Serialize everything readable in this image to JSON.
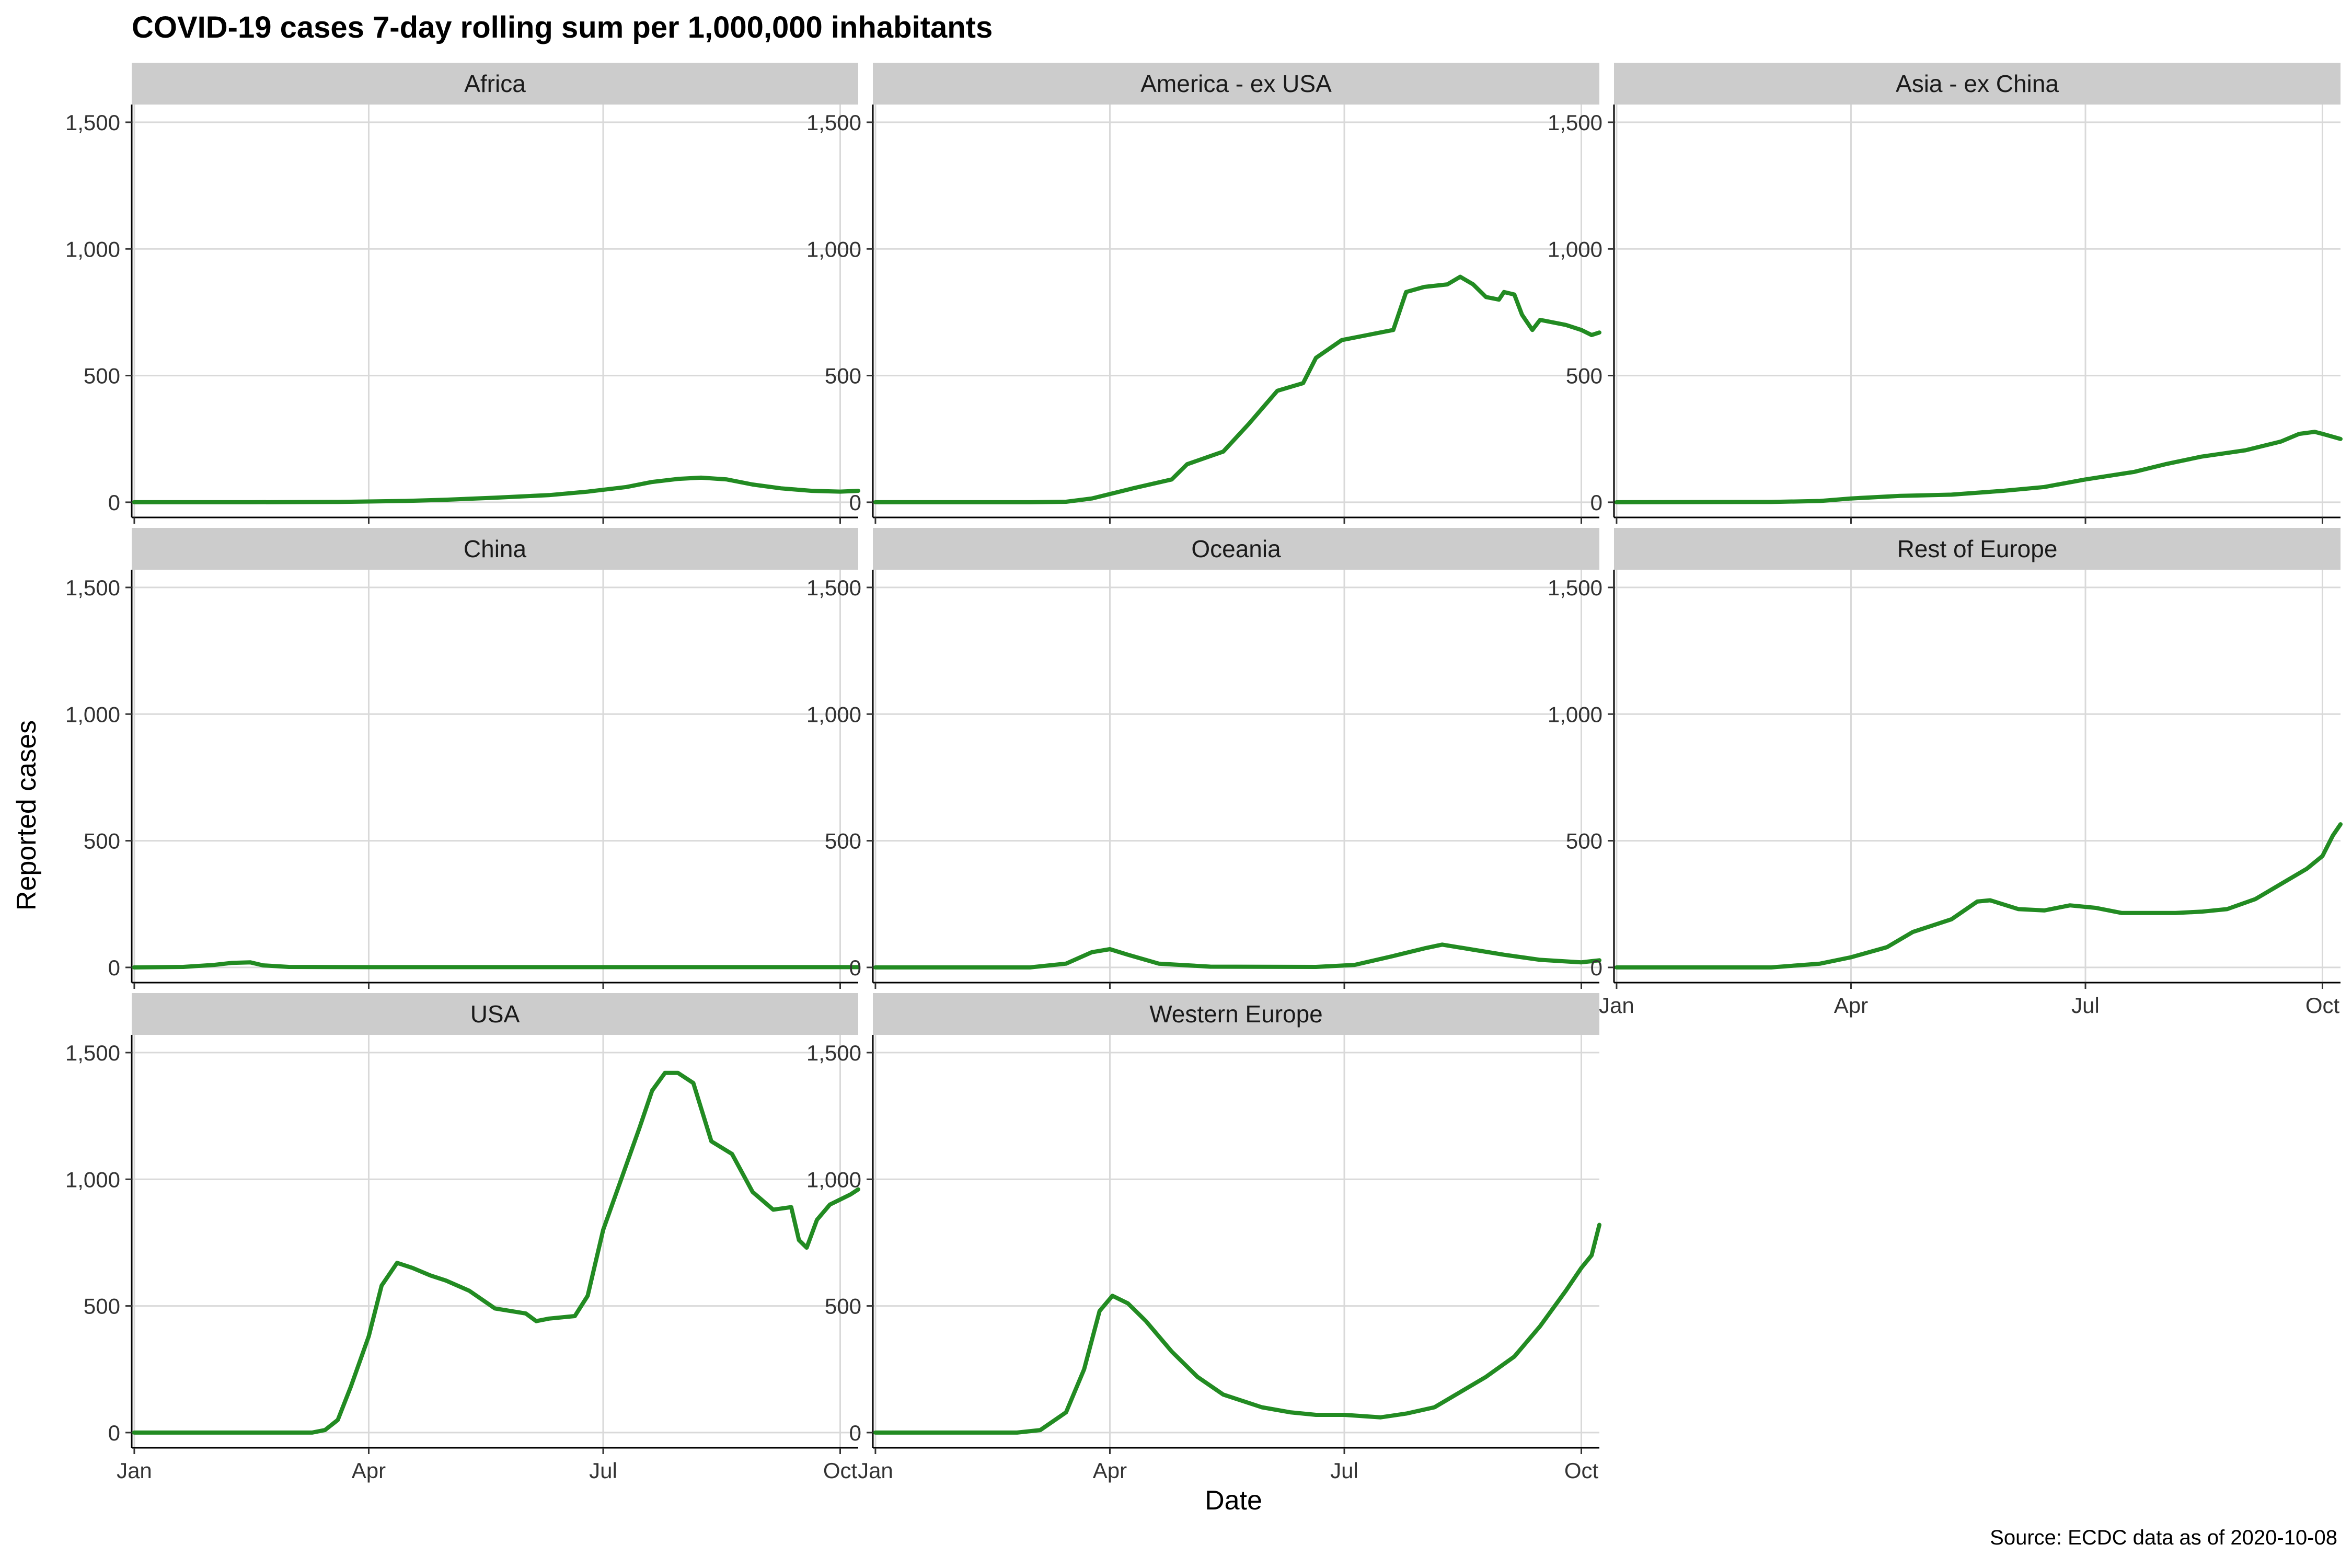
{
  "chart_data": {
    "type": "line",
    "title": "COVID-19 cases 7-day rolling sum per 1,000,000 inhabitants",
    "xlabel": "Date",
    "ylabel": "Reported cases",
    "caption": "Source: ECDC data as of 2020-10-08",
    "xlim": [
      "2019-12-31",
      "2020-10-08"
    ],
    "ylim": [
      -60,
      1570
    ],
    "x_ticks": [
      {
        "date": "2020-01-01",
        "label": "Jan"
      },
      {
        "date": "2020-04-01",
        "label": "Apr"
      },
      {
        "date": "2020-07-01",
        "label": "Jul"
      },
      {
        "date": "2020-10-01",
        "label": "Oct"
      }
    ],
    "y_ticks": [
      {
        "value": 0,
        "label": "0"
      },
      {
        "value": 500,
        "label": "500"
      },
      {
        "value": 1000,
        "label": "1,000"
      },
      {
        "value": 1500,
        "label": "1,500"
      }
    ],
    "grid": true,
    "line_color": "#228B22",
    "strip_color": "#cccccc",
    "grid_color": "#d9d9d9",
    "panels": [
      {
        "name": "Africa",
        "row": 0,
        "col": 0,
        "x_axis_labels": false,
        "points": [
          [
            "2020-01-01",
            0
          ],
          [
            "2020-02-15",
            0
          ],
          [
            "2020-03-20",
            1
          ],
          [
            "2020-04-15",
            5
          ],
          [
            "2020-05-01",
            10
          ],
          [
            "2020-05-20",
            18
          ],
          [
            "2020-06-10",
            28
          ],
          [
            "2020-06-25",
            42
          ],
          [
            "2020-07-10",
            60
          ],
          [
            "2020-07-20",
            80
          ],
          [
            "2020-07-30",
            92
          ],
          [
            "2020-08-08",
            97
          ],
          [
            "2020-08-18",
            90
          ],
          [
            "2020-08-28",
            70
          ],
          [
            "2020-09-08",
            55
          ],
          [
            "2020-09-20",
            45
          ],
          [
            "2020-10-01",
            42
          ],
          [
            "2020-10-08",
            45
          ]
        ]
      },
      {
        "name": "America - ex USA",
        "row": 0,
        "col": 1,
        "x_axis_labels": false,
        "points": [
          [
            "2020-01-01",
            0
          ],
          [
            "2020-03-01",
            0
          ],
          [
            "2020-03-15",
            2
          ],
          [
            "2020-03-25",
            15
          ],
          [
            "2020-04-10",
            55
          ],
          [
            "2020-04-25",
            90
          ],
          [
            "2020-05-01",
            150
          ],
          [
            "2020-05-15",
            200
          ],
          [
            "2020-05-25",
            310
          ],
          [
            "2020-06-05",
            440
          ],
          [
            "2020-06-15",
            470
          ],
          [
            "2020-06-20",
            570
          ],
          [
            "2020-06-30",
            640
          ],
          [
            "2020-07-10",
            660
          ],
          [
            "2020-07-20",
            680
          ],
          [
            "2020-07-25",
            830
          ],
          [
            "2020-08-01",
            850
          ],
          [
            "2020-08-10",
            860
          ],
          [
            "2020-08-15",
            890
          ],
          [
            "2020-08-20",
            860
          ],
          [
            "2020-08-25",
            810
          ],
          [
            "2020-08-30",
            800
          ],
          [
            "2020-09-01",
            830
          ],
          [
            "2020-09-05",
            820
          ],
          [
            "2020-09-08",
            740
          ],
          [
            "2020-09-12",
            680
          ],
          [
            "2020-09-15",
            720
          ],
          [
            "2020-09-25",
            700
          ],
          [
            "2020-10-01",
            680
          ],
          [
            "2020-10-05",
            660
          ],
          [
            "2020-10-08",
            670
          ]
        ]
      },
      {
        "name": "Asia - ex China",
        "row": 0,
        "col": 2,
        "x_axis_labels": false,
        "points": [
          [
            "2020-01-01",
            0
          ],
          [
            "2020-03-01",
            1
          ],
          [
            "2020-03-20",
            5
          ],
          [
            "2020-04-01",
            15
          ],
          [
            "2020-04-20",
            25
          ],
          [
            "2020-05-10",
            30
          ],
          [
            "2020-05-30",
            45
          ],
          [
            "2020-06-15",
            60
          ],
          [
            "2020-07-01",
            90
          ],
          [
            "2020-07-20",
            120
          ],
          [
            "2020-08-01",
            150
          ],
          [
            "2020-08-15",
            180
          ],
          [
            "2020-09-01",
            205
          ],
          [
            "2020-09-15",
            240
          ],
          [
            "2020-09-22",
            270
          ],
          [
            "2020-09-28",
            278
          ],
          [
            "2020-10-01",
            270
          ],
          [
            "2020-10-08",
            250
          ]
        ]
      },
      {
        "name": "China",
        "row": 1,
        "col": 0,
        "x_axis_labels": false,
        "points": [
          [
            "2020-01-01",
            0
          ],
          [
            "2020-01-20",
            2
          ],
          [
            "2020-02-01",
            10
          ],
          [
            "2020-02-08",
            18
          ],
          [
            "2020-02-15",
            20
          ],
          [
            "2020-02-20",
            8
          ],
          [
            "2020-03-01",
            2
          ],
          [
            "2020-04-01",
            1
          ],
          [
            "2020-10-08",
            1
          ]
        ]
      },
      {
        "name": "Oceania",
        "row": 1,
        "col": 1,
        "x_axis_labels": false,
        "points": [
          [
            "2020-01-01",
            0
          ],
          [
            "2020-03-01",
            0
          ],
          [
            "2020-03-15",
            15
          ],
          [
            "2020-03-25",
            60
          ],
          [
            "2020-04-01",
            72
          ],
          [
            "2020-04-08",
            50
          ],
          [
            "2020-04-20",
            15
          ],
          [
            "2020-05-10",
            3
          ],
          [
            "2020-06-20",
            2
          ],
          [
            "2020-07-05",
            10
          ],
          [
            "2020-07-20",
            45
          ],
          [
            "2020-08-01",
            75
          ],
          [
            "2020-08-08",
            90
          ],
          [
            "2020-08-20",
            70
          ],
          [
            "2020-09-01",
            50
          ],
          [
            "2020-09-15",
            30
          ],
          [
            "2020-10-01",
            20
          ],
          [
            "2020-10-08",
            28
          ]
        ]
      },
      {
        "name": "Rest of Europe",
        "row": 1,
        "col": 2,
        "x_axis_labels": true,
        "points": [
          [
            "2020-01-01",
            0
          ],
          [
            "2020-03-01",
            0
          ],
          [
            "2020-03-20",
            15
          ],
          [
            "2020-04-01",
            40
          ],
          [
            "2020-04-15",
            80
          ],
          [
            "2020-04-25",
            140
          ],
          [
            "2020-05-10",
            190
          ],
          [
            "2020-05-20",
            260
          ],
          [
            "2020-05-25",
            265
          ],
          [
            "2020-06-05",
            230
          ],
          [
            "2020-06-15",
            225
          ],
          [
            "2020-06-25",
            245
          ],
          [
            "2020-07-05",
            235
          ],
          [
            "2020-07-15",
            215
          ],
          [
            "2020-07-25",
            215
          ],
          [
            "2020-08-05",
            215
          ],
          [
            "2020-08-15",
            220
          ],
          [
            "2020-08-25",
            230
          ],
          [
            "2020-09-05",
            270
          ],
          [
            "2020-09-15",
            330
          ],
          [
            "2020-09-25",
            390
          ],
          [
            "2020-10-01",
            440
          ],
          [
            "2020-10-05",
            520
          ],
          [
            "2020-10-08",
            565
          ]
        ]
      },
      {
        "name": "USA",
        "row": 2,
        "col": 0,
        "x_axis_labels": true,
        "points": [
          [
            "2020-01-01",
            0
          ],
          [
            "2020-03-10",
            0
          ],
          [
            "2020-03-15",
            10
          ],
          [
            "2020-03-20",
            50
          ],
          [
            "2020-03-25",
            180
          ],
          [
            "2020-04-01",
            380
          ],
          [
            "2020-04-06",
            580
          ],
          [
            "2020-04-12",
            670
          ],
          [
            "2020-04-18",
            650
          ],
          [
            "2020-04-25",
            620
          ],
          [
            "2020-05-01",
            600
          ],
          [
            "2020-05-10",
            560
          ],
          [
            "2020-05-20",
            490
          ],
          [
            "2020-06-01",
            470
          ],
          [
            "2020-06-05",
            440
          ],
          [
            "2020-06-10",
            450
          ],
          [
            "2020-06-20",
            460
          ],
          [
            "2020-06-25",
            540
          ],
          [
            "2020-07-01",
            800
          ],
          [
            "2020-07-08",
            1000
          ],
          [
            "2020-07-15",
            1200
          ],
          [
            "2020-07-20",
            1350
          ],
          [
            "2020-07-25",
            1420
          ],
          [
            "2020-07-30",
            1420
          ],
          [
            "2020-08-05",
            1380
          ],
          [
            "2020-08-12",
            1150
          ],
          [
            "2020-08-20",
            1100
          ],
          [
            "2020-08-28",
            950
          ],
          [
            "2020-09-05",
            880
          ],
          [
            "2020-09-12",
            890
          ],
          [
            "2020-09-15",
            760
          ],
          [
            "2020-09-18",
            730
          ],
          [
            "2020-09-22",
            840
          ],
          [
            "2020-09-27",
            900
          ],
          [
            "2020-10-01",
            920
          ],
          [
            "2020-10-05",
            940
          ],
          [
            "2020-10-08",
            960
          ]
        ]
      },
      {
        "name": "Western Europe",
        "row": 2,
        "col": 1,
        "x_axis_labels": true,
        "points": [
          [
            "2020-01-01",
            0
          ],
          [
            "2020-02-25",
            0
          ],
          [
            "2020-03-05",
            10
          ],
          [
            "2020-03-15",
            80
          ],
          [
            "2020-03-22",
            250
          ],
          [
            "2020-03-28",
            480
          ],
          [
            "2020-04-02",
            540
          ],
          [
            "2020-04-08",
            510
          ],
          [
            "2020-04-15",
            440
          ],
          [
            "2020-04-25",
            320
          ],
          [
            "2020-05-05",
            220
          ],
          [
            "2020-05-15",
            150
          ],
          [
            "2020-05-30",
            100
          ],
          [
            "2020-06-10",
            80
          ],
          [
            "2020-06-20",
            70
          ],
          [
            "2020-07-01",
            70
          ],
          [
            "2020-07-15",
            60
          ],
          [
            "2020-07-25",
            75
          ],
          [
            "2020-08-05",
            100
          ],
          [
            "2020-08-15",
            160
          ],
          [
            "2020-08-25",
            220
          ],
          [
            "2020-09-05",
            300
          ],
          [
            "2020-09-15",
            420
          ],
          [
            "2020-09-25",
            560
          ],
          [
            "2020-10-01",
            650
          ],
          [
            "2020-10-05",
            700
          ],
          [
            "2020-10-08",
            820
          ]
        ]
      }
    ]
  }
}
